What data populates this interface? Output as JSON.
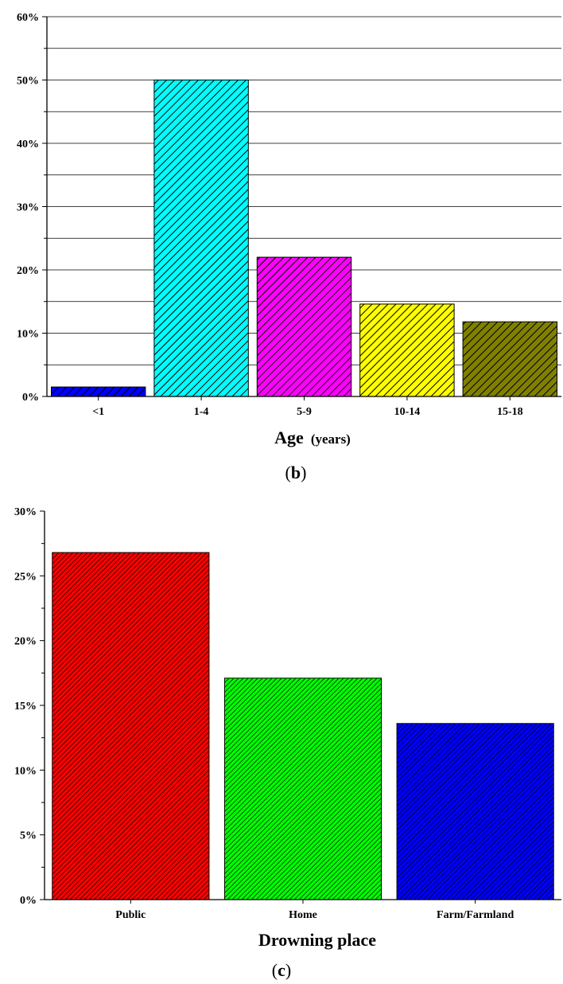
{
  "chart_data": [
    {
      "type": "bar",
      "panel_label": "b",
      "categories": [
        "<1",
        "1-4",
        "5-9",
        "10-14",
        "15-18"
      ],
      "values": [
        1.5,
        50,
        22,
        14.6,
        11.8
      ],
      "value_unit": "%",
      "xlabel": "Age",
      "xlabel_unit": "(years)",
      "ylabel": "",
      "ylim": [
        0,
        60
      ],
      "yticks": [
        "0%",
        "10%",
        "20%",
        "30%",
        "40%",
        "50%",
        "60%"
      ],
      "grid": true,
      "hatch": "diagonal",
      "colors": [
        "#0000ff",
        "#00ffff",
        "#ff00ff",
        "#ffff00",
        "#808000"
      ]
    },
    {
      "type": "bar",
      "panel_label": "c",
      "categories": [
        "Public",
        "Home",
        "Farm/Farmland"
      ],
      "values": [
        26.8,
        17.1,
        13.6
      ],
      "value_unit": "%",
      "xlabel": "Drowning place",
      "ylabel": "",
      "ylim": [
        0,
        30
      ],
      "yticks": [
        "0%",
        "5%",
        "10%",
        "15%",
        "20%",
        "25%",
        "30%"
      ],
      "grid": false,
      "hatch": "diagonal-dense",
      "colors": [
        "#ff0000",
        "#00ff00",
        "#0000ff"
      ]
    }
  ]
}
